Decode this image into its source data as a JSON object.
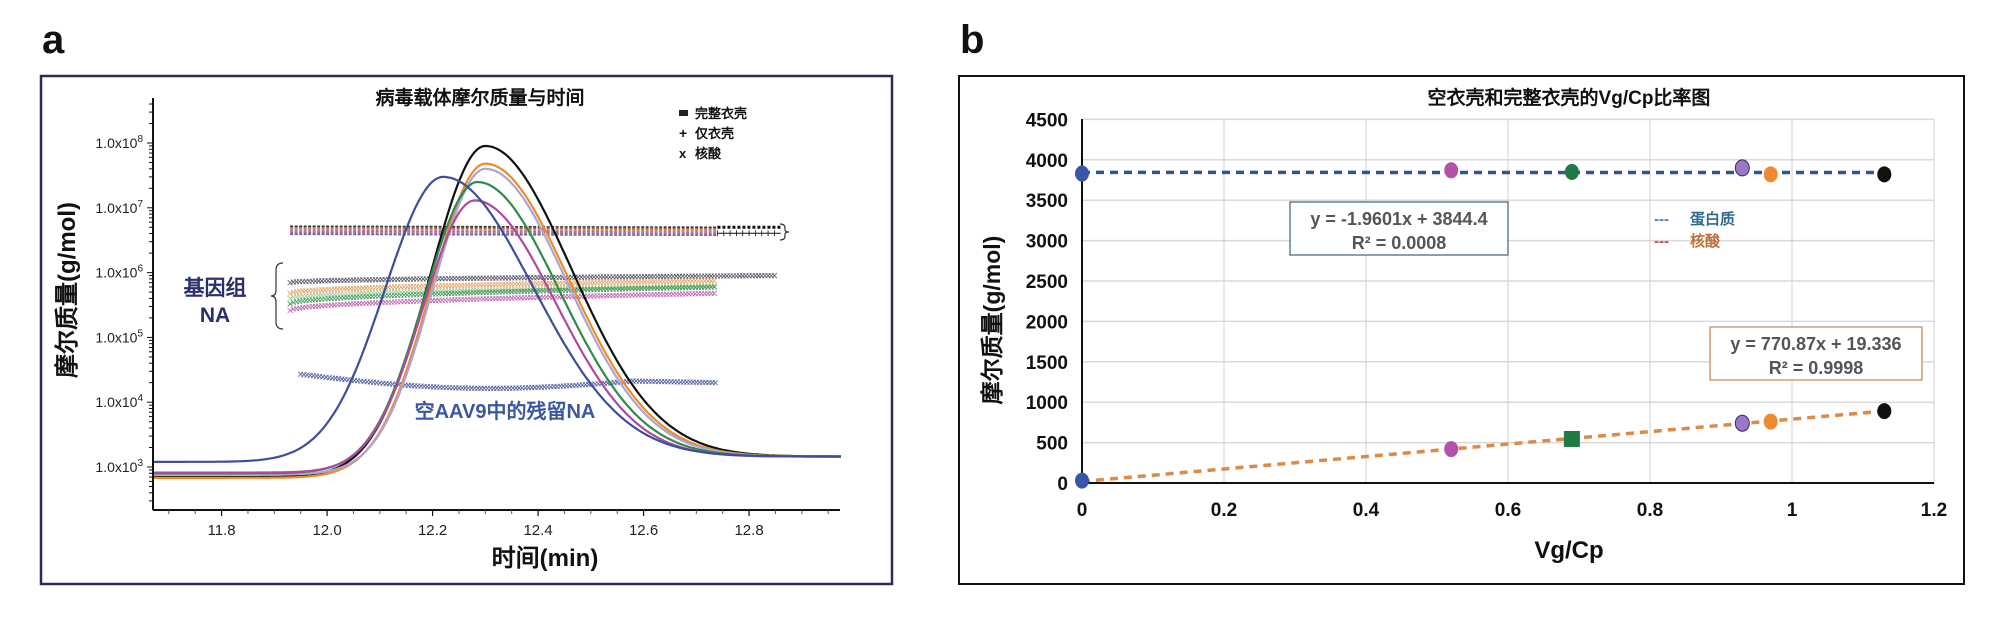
{
  "panels": {
    "a_label": "a",
    "b_label": "b"
  },
  "chart_data": [
    {
      "type": "line",
      "title": "病毒载体摩尔质量与时间",
      "xlabel": "时间(min)",
      "ylabel": "摩尔质量(g/mol)",
      "xlim": [
        11.67,
        12.97
      ],
      "ylim_log10": [
        2.5,
        8.6
      ],
      "yscale": "log",
      "x_ticks": [
        "11.8",
        "12.0",
        "12.2",
        "12.4",
        "12.6",
        "12.8"
      ],
      "x_tick_values": [
        11.8,
        12.0,
        12.2,
        12.4,
        12.6,
        12.8
      ],
      "y_ticks": [
        {
          "base": "1.0x10",
          "exp": "3",
          "value": 1000
        },
        {
          "base": "1.0x10",
          "exp": "4",
          "value": 10000
        },
        {
          "base": "1.0x10",
          "exp": "5",
          "value": 100000
        },
        {
          "base": "1.0x10",
          "exp": "6",
          "value": 1000000
        },
        {
          "base": "1.0x10",
          "exp": "7",
          "value": 10000000
        },
        {
          "base": "1.0x10",
          "exp": "8",
          "value": 100000000
        }
      ],
      "legend": [
        {
          "symbol": "▬",
          "label": "完整衣壳"
        },
        {
          "symbol": "+",
          "label": "仅衣壳"
        },
        {
          "symbol": "x",
          "label": "核酸"
        }
      ],
      "annotations": {
        "genome": [
          "基因组",
          "NA"
        ],
        "residual": "空AAV9中的残留NA"
      },
      "series": [
        {
          "name": "black",
          "color": "#111111",
          "peak_x": 12.3,
          "peak_y": 90000000,
          "base_y": 700,
          "width": 0.105
        },
        {
          "name": "orange",
          "color": "#f08a24",
          "peak_x": 12.3,
          "peak_y": 48000000,
          "base_y": 680,
          "width": 0.102
        },
        {
          "name": "lavender",
          "color": "#a7a6d6",
          "peak_x": 12.3,
          "peak_y": 40000000,
          "base_y": 760,
          "width": 0.1
        },
        {
          "name": "green",
          "color": "#2e8b4a",
          "peak_x": 12.285,
          "peak_y": 25000000,
          "base_y": 800,
          "width": 0.1
        },
        {
          "name": "magenta",
          "color": "#b0489c",
          "peak_x": 12.28,
          "peak_y": 13000000,
          "base_y": 820,
          "width": 0.098
        },
        {
          "name": "blue",
          "color": "#3b4f9a",
          "peak_x": 12.22,
          "peak_y": 30000000,
          "base_y": 1200,
          "width": 0.11
        }
      ],
      "nucleic_acid_series": [
        {
          "color": "#555566",
          "x_range": [
            11.93,
            12.85
          ],
          "y_start": 700000,
          "y_end": 900000
        },
        {
          "color": "#e8a060",
          "x_range": [
            11.93,
            12.74
          ],
          "y_start": 480000,
          "y_end": 750000
        },
        {
          "color": "#a6c89a",
          "x_range": [
            11.93,
            12.74
          ],
          "y_start": 400000,
          "y_end": 620000
        },
        {
          "color": "#3e9a55",
          "x_range": [
            11.93,
            12.74
          ],
          "y_start": 330000,
          "y_end": 600000
        },
        {
          "color": "#c060b0",
          "x_range": [
            11.93,
            12.74
          ],
          "y_start": 260000,
          "y_end": 480000
        },
        {
          "color": "#4a5aa0",
          "x_range": [
            11.95,
            12.74
          ],
          "y_start": 27000,
          "y_end": 20000,
          "dip_y": 16000
        }
      ],
      "capsid_band": {
        "x_range": [
          11.93,
          12.74
        ],
        "y": 4500000,
        "tail_x_end": 12.86
      }
    },
    {
      "type": "scatter",
      "title": "空衣壳和完整衣壳的Vg/Cp比率图",
      "xlabel": "Vg/Cp",
      "ylabel": "摩尔质量(g/mol)",
      "xlim": [
        0,
        1.2
      ],
      "ylim": [
        0,
        4500
      ],
      "grid": true,
      "x_ticks": [
        "0",
        "0.2",
        "0.4",
        "0.6",
        "0.8",
        "1",
        "1.2"
      ],
      "y_ticks": [
        "0",
        "500",
        "1000",
        "1500",
        "2000",
        "2500",
        "3000",
        "3500",
        "4000",
        "4500"
      ],
      "legend": [
        {
          "label": "蛋白质",
          "line_color": "#4a7fb0",
          "text_color": "#2d6a8e",
          "dash": "---"
        },
        {
          "label": "核酸",
          "line_color": "#c0504d",
          "text_color": "#c0703a",
          "dash": "---"
        }
      ],
      "series": [
        {
          "name": "蛋白质",
          "trend_color": "#2f5597",
          "points": [
            {
              "x": 0,
              "y": 3830,
              "color": "#3b55a8",
              "shape": "circle"
            },
            {
              "x": 0.52,
              "y": 3870,
              "color": "#b452a8",
              "shape": "circle"
            },
            {
              "x": 0.69,
              "y": 3850,
              "color": "#1f7a45",
              "shape": "circle"
            },
            {
              "x": 0.93,
              "y": 3900,
              "color": "#9a78c8",
              "shape": "circle"
            },
            {
              "x": 0.97,
              "y": 3820,
              "color": "#f08a30",
              "shape": "circle"
            },
            {
              "x": 1.13,
              "y": 3820,
              "color": "#111111",
              "shape": "circle"
            }
          ],
          "trendline": {
            "slope": -1.9601,
            "intercept": 3844.4,
            "equation": "y = -1.9601x + 3844.4",
            "r2": "R² = 0.0008"
          }
        },
        {
          "name": "核酸",
          "trend_color": "#dd8a45",
          "points": [
            {
              "x": 0,
              "y": 30,
              "color": "#3b55a8",
              "shape": "circle"
            },
            {
              "x": 0.52,
              "y": 420,
              "color": "#b452a8",
              "shape": "circle"
            },
            {
              "x": 0.69,
              "y": 545,
              "color": "#1f7a45",
              "shape": "square"
            },
            {
              "x": 0.93,
              "y": 740,
              "color": "#9a78c8",
              "shape": "circle"
            },
            {
              "x": 0.97,
              "y": 760,
              "color": "#f08a30",
              "shape": "circle"
            },
            {
              "x": 1.13,
              "y": 890,
              "color": "#111111",
              "shape": "circle"
            }
          ],
          "trendline": {
            "slope": 770.87,
            "intercept": 19.336,
            "equation": "y = 770.87x + 19.336",
            "r2": "R² = 0.9998"
          }
        }
      ]
    }
  ]
}
